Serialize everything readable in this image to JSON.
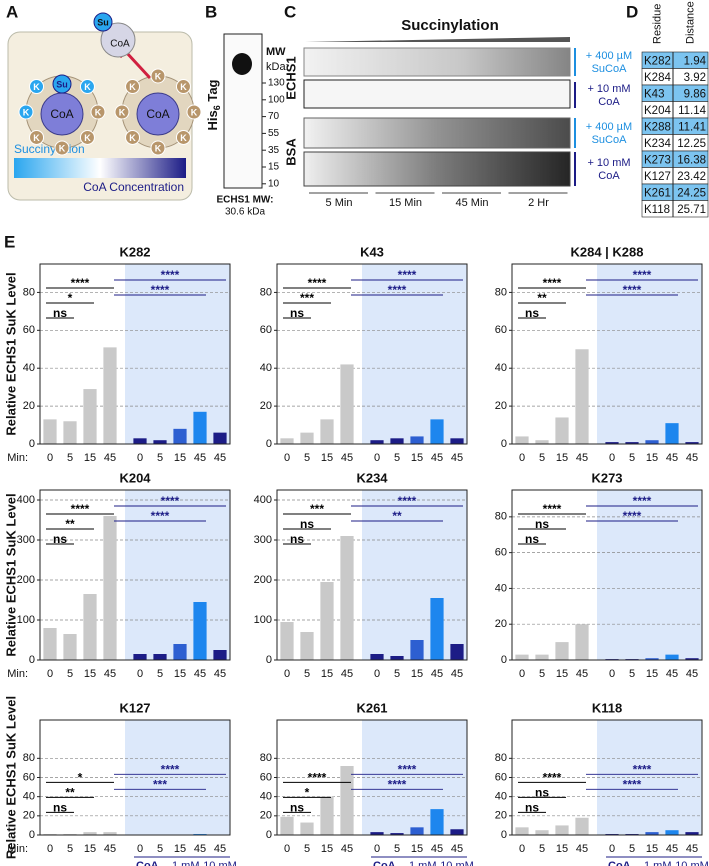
{
  "figure": {
    "panel_a": {
      "label": "A",
      "su": "Su",
      "coa": "CoA",
      "k": "K",
      "succinylation": "Succinylation",
      "coa_concentration": "CoA Concentration"
    },
    "panel_b": {
      "label": "B",
      "antibody": "His",
      "antibody_sub": "6",
      "antibody_rest": " Tag",
      "mw_header": "MW",
      "mw_unit": "kDa:",
      "mw_markers": [
        "130",
        "100",
        "70",
        "55",
        "35",
        "15",
        "10"
      ],
      "caption_1": "ECHS1 MW:",
      "caption_2": "30.6 kDa"
    },
    "panel_c": {
      "label": "C",
      "title": "Succinylation",
      "protein_1": "ECHS1",
      "protein_2": "BSA",
      "treat_1a": "+ 400 µM",
      "treat_1b": "SuCoA",
      "treat_2a": "+ 10 mM",
      "treat_2b": "CoA",
      "times": [
        "5 Min",
        "15 Min",
        "45 Min",
        "2 Hr"
      ]
    },
    "panel_d": {
      "label": "D",
      "headers": [
        "Residue",
        "Distance (Å)"
      ],
      "highlighted": [
        0,
        2,
        4,
        6,
        8
      ],
      "rows": [
        [
          "K282",
          "1.94"
        ],
        [
          "K284",
          "3.92"
        ],
        [
          "K43",
          "9.86"
        ],
        [
          "K204",
          "11.14"
        ],
        [
          "K288",
          "11.41"
        ],
        [
          "K234",
          "12.25"
        ],
        [
          "K273",
          "16.38"
        ],
        [
          "K127",
          "23.42"
        ],
        [
          "K261",
          "24.25"
        ],
        [
          "K118",
          "25.71"
        ]
      ]
    },
    "panel_e": {
      "label": "E",
      "x_prefix": "Min:",
      "coa": "CoA",
      "low": "1 mM",
      "high": "10 mM",
      "shade_color": "#dce8fa"
    }
  },
  "chart_data": [
    {
      "type": "bar",
      "title": "K282",
      "ylabel": "Relative ECHS1 SuK Level",
      "categories": [
        "0",
        "5",
        "15",
        "45",
        "0",
        "5",
        "15",
        "45",
        "45"
      ],
      "values": [
        13,
        12,
        29,
        51,
        3,
        2,
        8,
        17,
        6
      ],
      "colors": [
        "#c9c9c9",
        "#c9c9c9",
        "#c9c9c9",
        "#c9c9c9",
        "#1c1c86",
        "#1c1c86",
        "#2d5fd1",
        "#1d86ee",
        "#1c1c86"
      ],
      "ylim": [
        0,
        95
      ],
      "yticks": [
        0,
        20,
        40,
        60,
        80
      ],
      "grid": true,
      "comparisons": [
        {
          "label": "****",
          "bars": [
            0,
            3
          ],
          "color": "#000000"
        },
        {
          "label": "*",
          "bars": [
            0,
            2
          ],
          "color": "#000000"
        },
        {
          "label": "ns",
          "bars": [
            0,
            1
          ],
          "color": "#000000"
        },
        {
          "label": "****",
          "bars": [
            3,
            8
          ],
          "color": "#1c1c86"
        },
        {
          "label": "****",
          "bars": [
            3,
            7
          ],
          "color": "#1c1c86"
        }
      ]
    },
    {
      "type": "bar",
      "title": "K43",
      "categories": [
        "0",
        "5",
        "15",
        "45",
        "0",
        "5",
        "15",
        "45",
        "45"
      ],
      "values": [
        3,
        6,
        13,
        42,
        2,
        3,
        4,
        13,
        3
      ],
      "colors": [
        "#c9c9c9",
        "#c9c9c9",
        "#c9c9c9",
        "#c9c9c9",
        "#1c1c86",
        "#1c1c86",
        "#2d5fd1",
        "#1d86ee",
        "#1c1c86"
      ],
      "ylim": [
        0,
        95
      ],
      "yticks": [
        0,
        20,
        40,
        60,
        80
      ],
      "grid": true,
      "comparisons": [
        {
          "label": "****",
          "bars": [
            0,
            3
          ],
          "color": "#000000"
        },
        {
          "label": "***",
          "bars": [
            0,
            2
          ],
          "color": "#000000"
        },
        {
          "label": "ns",
          "bars": [
            0,
            1
          ],
          "color": "#000000"
        },
        {
          "label": "****",
          "bars": [
            3,
            8
          ],
          "color": "#1c1c86"
        },
        {
          "label": "****",
          "bars": [
            3,
            7
          ],
          "color": "#1c1c86"
        }
      ]
    },
    {
      "type": "bar",
      "title": "K284 | K288",
      "categories": [
        "0",
        "5",
        "15",
        "45",
        "0",
        "5",
        "15",
        "45",
        "45"
      ],
      "values": [
        4,
        2,
        14,
        50,
        1,
        1,
        2,
        11,
        1
      ],
      "colors": [
        "#c9c9c9",
        "#c9c9c9",
        "#c9c9c9",
        "#c9c9c9",
        "#1c1c86",
        "#1c1c86",
        "#2d5fd1",
        "#1d86ee",
        "#1c1c86"
      ],
      "ylim": [
        0,
        95
      ],
      "yticks": [
        0,
        20,
        40,
        60,
        80
      ],
      "grid": true,
      "comparisons": [
        {
          "label": "****",
          "bars": [
            0,
            3
          ],
          "color": "#000000"
        },
        {
          "label": "**",
          "bars": [
            0,
            2
          ],
          "color": "#000000"
        },
        {
          "label": "ns",
          "bars": [
            0,
            1
          ],
          "color": "#000000"
        },
        {
          "label": "****",
          "bars": [
            3,
            8
          ],
          "color": "#1c1c86"
        },
        {
          "label": "****",
          "bars": [
            3,
            7
          ],
          "color": "#1c1c86"
        }
      ]
    },
    {
      "type": "bar",
      "title": "K204",
      "ylabel": "Relative ECHS1 SuK Level",
      "categories": [
        "0",
        "5",
        "15",
        "45",
        "0",
        "5",
        "15",
        "45",
        "45"
      ],
      "values": [
        80,
        65,
        165,
        360,
        15,
        15,
        40,
        145,
        25
      ],
      "colors": [
        "#c9c9c9",
        "#c9c9c9",
        "#c9c9c9",
        "#c9c9c9",
        "#1c1c86",
        "#1c1c86",
        "#2d5fd1",
        "#1d86ee",
        "#1c1c86"
      ],
      "ylim": [
        0,
        425
      ],
      "yticks": [
        0,
        100,
        200,
        300,
        400
      ],
      "grid": true,
      "comparisons": [
        {
          "label": "****",
          "bars": [
            0,
            3
          ],
          "color": "#000000"
        },
        {
          "label": "**",
          "bars": [
            0,
            2
          ],
          "color": "#000000"
        },
        {
          "label": "ns",
          "bars": [
            0,
            1
          ],
          "color": "#000000"
        },
        {
          "label": "****",
          "bars": [
            3,
            8
          ],
          "color": "#1c1c86"
        },
        {
          "label": "****",
          "bars": [
            3,
            7
          ],
          "color": "#1c1c86"
        }
      ]
    },
    {
      "type": "bar",
      "title": "K234",
      "categories": [
        "0",
        "5",
        "15",
        "45",
        "0",
        "5",
        "15",
        "45",
        "45"
      ],
      "values": [
        95,
        70,
        195,
        310,
        15,
        10,
        50,
        155,
        40
      ],
      "colors": [
        "#c9c9c9",
        "#c9c9c9",
        "#c9c9c9",
        "#c9c9c9",
        "#1c1c86",
        "#1c1c86",
        "#2d5fd1",
        "#1d86ee",
        "#1c1c86"
      ],
      "ylim": [
        0,
        425
      ],
      "yticks": [
        0,
        100,
        200,
        300,
        400
      ],
      "grid": true,
      "comparisons": [
        {
          "label": "***",
          "bars": [
            0,
            3
          ],
          "color": "#000000"
        },
        {
          "label": "ns",
          "bars": [
            0,
            2
          ],
          "color": "#000000"
        },
        {
          "label": "ns",
          "bars": [
            0,
            1
          ],
          "color": "#000000"
        },
        {
          "label": "****",
          "bars": [
            3,
            8
          ],
          "color": "#1c1c86"
        },
        {
          "label": "**",
          "bars": [
            3,
            7
          ],
          "color": "#1c1c86"
        }
      ]
    },
    {
      "type": "bar",
      "title": "K273",
      "categories": [
        "0",
        "5",
        "15",
        "45",
        "0",
        "5",
        "15",
        "45",
        "45"
      ],
      "values": [
        3,
        3,
        10,
        20,
        0.5,
        0.5,
        1,
        3,
        1
      ],
      "colors": [
        "#c9c9c9",
        "#c9c9c9",
        "#c9c9c9",
        "#c9c9c9",
        "#1c1c86",
        "#1c1c86",
        "#2d5fd1",
        "#1d86ee",
        "#1c1c86"
      ],
      "ylim": [
        0,
        95
      ],
      "yticks": [
        0,
        20,
        40,
        60,
        80
      ],
      "grid": true,
      "comparisons": [
        {
          "label": "****",
          "bars": [
            0,
            3
          ],
          "color": "#000000"
        },
        {
          "label": "ns",
          "bars": [
            0,
            2
          ],
          "color": "#000000"
        },
        {
          "label": "ns",
          "bars": [
            0,
            1
          ],
          "color": "#000000"
        },
        {
          "label": "****",
          "bars": [
            3,
            8
          ],
          "color": "#1c1c86"
        },
        {
          "label": "****",
          "bars": [
            3,
            7
          ],
          "color": "#1c1c86"
        }
      ]
    },
    {
      "type": "bar",
      "title": "K127",
      "ylabel": "Relative ECHS1 SuK Level",
      "categories": [
        "0",
        "5",
        "15",
        "45",
        "0",
        "5",
        "15",
        "45",
        "45"
      ],
      "values": [
        1,
        1,
        3,
        3,
        0.5,
        0.5,
        0.5,
        1,
        0.5
      ],
      "colors": [
        "#c9c9c9",
        "#c9c9c9",
        "#c9c9c9",
        "#c9c9c9",
        "#1c1c86",
        "#1c1c86",
        "#2d5fd1",
        "#1d86ee",
        "#1c1c86"
      ],
      "ylim": [
        0,
        120
      ],
      "yticks": [
        0,
        20,
        40,
        60,
        80
      ],
      "grid": true,
      "comparisons": [
        {
          "label": "*",
          "bars": [
            0,
            3
          ],
          "color": "#000000"
        },
        {
          "label": "**",
          "bars": [
            0,
            2
          ],
          "color": "#000000"
        },
        {
          "label": "ns",
          "bars": [
            0,
            1
          ],
          "color": "#000000"
        },
        {
          "label": "****",
          "bars": [
            3,
            8
          ],
          "color": "#1c1c86"
        },
        {
          "label": "***",
          "bars": [
            3,
            7
          ],
          "color": "#1c1c86"
        }
      ]
    },
    {
      "type": "bar",
      "title": "K261",
      "categories": [
        "0",
        "5",
        "15",
        "45",
        "0",
        "5",
        "15",
        "45",
        "45"
      ],
      "values": [
        19,
        13,
        40,
        72,
        3,
        2,
        8,
        27,
        6
      ],
      "colors": [
        "#c9c9c9",
        "#c9c9c9",
        "#c9c9c9",
        "#c9c9c9",
        "#1c1c86",
        "#1c1c86",
        "#2d5fd1",
        "#1d86ee",
        "#1c1c86"
      ],
      "ylim": [
        0,
        120
      ],
      "yticks": [
        0,
        20,
        40,
        60,
        80
      ],
      "grid": true,
      "comparisons": [
        {
          "label": "****",
          "bars": [
            0,
            3
          ],
          "color": "#000000"
        },
        {
          "label": "*",
          "bars": [
            0,
            2
          ],
          "color": "#000000"
        },
        {
          "label": "ns",
          "bars": [
            0,
            1
          ],
          "color": "#000000"
        },
        {
          "label": "****",
          "bars": [
            3,
            8
          ],
          "color": "#1c1c86"
        },
        {
          "label": "****",
          "bars": [
            3,
            7
          ],
          "color": "#1c1c86"
        }
      ]
    },
    {
      "type": "bar",
      "title": "K118",
      "categories": [
        "0",
        "5",
        "15",
        "45",
        "0",
        "5",
        "15",
        "45",
        "45"
      ],
      "values": [
        8,
        5,
        10,
        18,
        1,
        1,
        3,
        5,
        3
      ],
      "colors": [
        "#c9c9c9",
        "#c9c9c9",
        "#c9c9c9",
        "#c9c9c9",
        "#1c1c86",
        "#1c1c86",
        "#2d5fd1",
        "#1d86ee",
        "#1c1c86"
      ],
      "ylim": [
        0,
        120
      ],
      "yticks": [
        0,
        20,
        40,
        60,
        80
      ],
      "grid": true,
      "comparisons": [
        {
          "label": "****",
          "bars": [
            0,
            3
          ],
          "color": "#000000"
        },
        {
          "label": "ns",
          "bars": [
            0,
            2
          ],
          "color": "#000000"
        },
        {
          "label": "ns",
          "bars": [
            0,
            1
          ],
          "color": "#000000"
        },
        {
          "label": "****",
          "bars": [
            3,
            8
          ],
          "color": "#1c1c86"
        },
        {
          "label": "****",
          "bars": [
            3,
            7
          ],
          "color": "#1c1c86"
        }
      ]
    }
  ]
}
